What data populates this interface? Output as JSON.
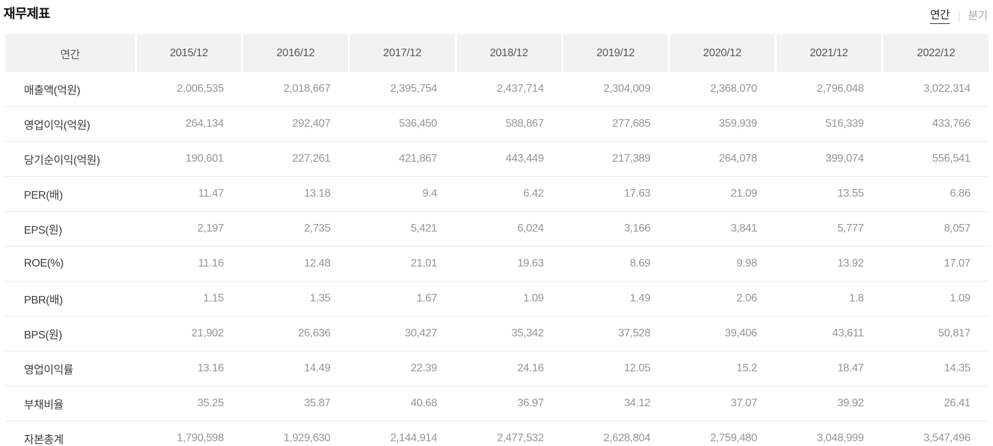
{
  "header": {
    "title": "재무제표",
    "period_tabs": [
      {
        "label": "연간",
        "active": true
      },
      {
        "label": "분기",
        "active": false
      }
    ]
  },
  "table": {
    "columns": [
      "연간",
      "2015/12",
      "2016/12",
      "2017/12",
      "2018/12",
      "2019/12",
      "2020/12",
      "2021/12",
      "2022/12"
    ],
    "rows": [
      {
        "label": "매출액(억원)",
        "values": [
          "2,006,535",
          "2,018,667",
          "2,395,754",
          "2,437,714",
          "2,304,009",
          "2,368,070",
          "2,796,048",
          "3,022,314"
        ]
      },
      {
        "label": "영업이익(억원)",
        "values": [
          "264,134",
          "292,407",
          "536,450",
          "588,867",
          "277,685",
          "359,939",
          "516,339",
          "433,766"
        ]
      },
      {
        "label": "당기순이익(억원)",
        "values": [
          "190,601",
          "227,261",
          "421,867",
          "443,449",
          "217,389",
          "264,078",
          "399,074",
          "556,541"
        ]
      },
      {
        "label": "PER(배)",
        "values": [
          "11.47",
          "13.18",
          "9.4",
          "6.42",
          "17.63",
          "21.09",
          "13.55",
          "6.86"
        ]
      },
      {
        "label": "EPS(원)",
        "values": [
          "2,197",
          "2,735",
          "5,421",
          "6,024",
          "3,166",
          "3,841",
          "5,777",
          "8,057"
        ]
      },
      {
        "label": "ROE(%)",
        "values": [
          "11.16",
          "12.48",
          "21.01",
          "19.63",
          "8.69",
          "9.98",
          "13.92",
          "17.07"
        ]
      },
      {
        "label": "PBR(배)",
        "values": [
          "1.15",
          "1.35",
          "1.67",
          "1.09",
          "1.49",
          "2.06",
          "1.8",
          "1.09"
        ]
      },
      {
        "label": "BPS(원)",
        "values": [
          "21,902",
          "26,636",
          "30,427",
          "35,342",
          "37,528",
          "39,406",
          "43,611",
          "50,817"
        ]
      },
      {
        "label": "영업이익률",
        "values": [
          "13.16",
          "14.49",
          "22.39",
          "24.16",
          "12.05",
          "15.2",
          "18.47",
          "14.35"
        ]
      },
      {
        "label": "부채비율",
        "values": [
          "35.25",
          "35.87",
          "40.68",
          "36.97",
          "34.12",
          "37.07",
          "39.92",
          "26.41"
        ]
      },
      {
        "label": "자본총계",
        "values": [
          "1,790,598",
          "1,929,630",
          "2,144,914",
          "2,477,532",
          "2,628,804",
          "2,759,480",
          "3,048,999",
          "3,547,496"
        ]
      }
    ]
  },
  "colors": {
    "header_cell_bg": "#f2f2f2",
    "header_text": "#565656",
    "row_label_text": "#3a3a3a",
    "value_text": "#949494",
    "row_border": "#e8e8e8",
    "title_text": "#111111",
    "active_tab_text": "#222222",
    "inactive_tab_text": "#a6a6a6"
  }
}
